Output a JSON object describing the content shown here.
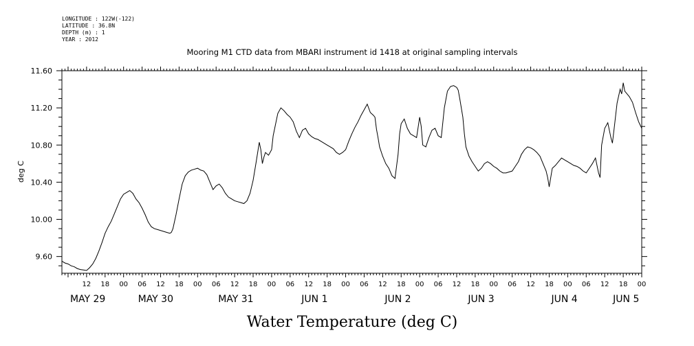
{
  "metadata": {
    "lines": [
      "LONGITUDE : 122W(-122)",
      "LATITUDE : 36.8N",
      "DEPTH (m) : 1",
      "YEAR : 2012"
    ]
  },
  "chart_data": {
    "type": "line",
    "title": "Mooring M1 CTD data from MBARI instrument id 1418 at original sampling intervals",
    "xlabel": "Water Temperature (deg C)",
    "ylabel": "deg C",
    "ylim": [
      9.42,
      11.6
    ],
    "y_ticks": [
      "9.60",
      "10.00",
      "10.40",
      "10.80",
      "11.20",
      "11.60"
    ],
    "x_range_hours": [
      0,
      188
    ],
    "x_hour_ticks": [
      {
        "h": 8,
        "label": "12"
      },
      {
        "h": 14,
        "label": "18"
      },
      {
        "h": 20,
        "label": "00"
      },
      {
        "h": 26,
        "label": "06"
      },
      {
        "h": 32,
        "label": "12"
      },
      {
        "h": 38,
        "label": "18"
      },
      {
        "h": 44,
        "label": "00"
      },
      {
        "h": 50,
        "label": "06"
      },
      {
        "h": 56,
        "label": "12"
      },
      {
        "h": 62,
        "label": "18"
      },
      {
        "h": 68,
        "label": "00"
      },
      {
        "h": 74,
        "label": "06"
      },
      {
        "h": 80,
        "label": "12"
      },
      {
        "h": 86,
        "label": "18"
      },
      {
        "h": 92,
        "label": "00"
      },
      {
        "h": 98,
        "label": "06"
      },
      {
        "h": 104,
        "label": "12"
      },
      {
        "h": 110,
        "label": "18"
      },
      {
        "h": 116,
        "label": "00"
      },
      {
        "h": 122,
        "label": "06"
      },
      {
        "h": 128,
        "label": "12"
      },
      {
        "h": 134,
        "label": "18"
      },
      {
        "h": 140,
        "label": "00"
      },
      {
        "h": 146,
        "label": "06"
      },
      {
        "h": 152,
        "label": "12"
      },
      {
        "h": 158,
        "label": "18"
      },
      {
        "h": 164,
        "label": "00"
      },
      {
        "h": 170,
        "label": "06"
      },
      {
        "h": 176,
        "label": "12"
      },
      {
        "h": 182,
        "label": "18"
      },
      {
        "h": 188,
        "label": "00"
      }
    ],
    "x_day_labels": [
      {
        "h": 2,
        "label": "MAY 29"
      },
      {
        "h": 24,
        "label": "MAY 30"
      },
      {
        "h": 50,
        "label": "MAY 31"
      },
      {
        "h": 77,
        "label": "JUN  1"
      },
      {
        "h": 104,
        "label": "JUN  2"
      },
      {
        "h": 131,
        "label": "JUN  3"
      },
      {
        "h": 158,
        "label": "JUN  4"
      },
      {
        "h": 178,
        "label": "JUN  5"
      }
    ],
    "series": [
      {
        "color": "#000000",
        "points": [
          [
            0,
            9.55
          ],
          [
            1,
            9.53
          ],
          [
            2,
            9.52
          ],
          [
            3,
            9.5
          ],
          [
            4,
            9.49
          ],
          [
            5,
            9.47
          ],
          [
            6,
            9.46
          ],
          [
            7,
            9.455
          ],
          [
            8,
            9.45
          ],
          [
            9,
            9.48
          ],
          [
            10,
            9.52
          ],
          [
            11,
            9.58
          ],
          [
            12,
            9.66
          ],
          [
            13,
            9.75
          ],
          [
            14,
            9.85
          ],
          [
            15,
            9.92
          ],
          [
            16,
            9.98
          ],
          [
            17,
            10.06
          ],
          [
            18,
            10.14
          ],
          [
            19,
            10.22
          ],
          [
            20,
            10.27
          ],
          [
            21,
            10.29
          ],
          [
            22,
            10.31
          ],
          [
            23,
            10.28
          ],
          [
            24,
            10.22
          ],
          [
            25,
            10.18
          ],
          [
            26,
            10.12
          ],
          [
            27,
            10.05
          ],
          [
            28,
            9.97
          ],
          [
            29,
            9.92
          ],
          [
            30,
            9.9
          ],
          [
            31,
            9.89
          ],
          [
            32,
            9.88
          ],
          [
            33,
            9.87
          ],
          [
            34,
            9.86
          ],
          [
            35,
            9.85
          ],
          [
            35.5,
            9.86
          ],
          [
            36,
            9.9
          ],
          [
            37,
            10.05
          ],
          [
            38,
            10.22
          ],
          [
            39,
            10.38
          ],
          [
            40,
            10.47
          ],
          [
            41,
            10.51
          ],
          [
            42,
            10.53
          ],
          [
            43,
            10.54
          ],
          [
            44,
            10.55
          ],
          [
            45,
            10.53
          ],
          [
            46,
            10.52
          ],
          [
            47,
            10.48
          ],
          [
            48,
            10.4
          ],
          [
            49,
            10.32
          ],
          [
            50,
            10.36
          ],
          [
            51,
            10.38
          ],
          [
            52,
            10.34
          ],
          [
            53,
            10.28
          ],
          [
            54,
            10.24
          ],
          [
            55,
            10.22
          ],
          [
            56,
            10.2
          ],
          [
            57,
            10.19
          ],
          [
            58,
            10.18
          ],
          [
            59,
            10.17
          ],
          [
            60,
            10.2
          ],
          [
            61,
            10.28
          ],
          [
            62,
            10.42
          ],
          [
            63,
            10.62
          ],
          [
            64,
            10.83
          ],
          [
            64.5,
            10.75
          ],
          [
            65,
            10.6
          ],
          [
            65.5,
            10.67
          ],
          [
            66,
            10.72
          ],
          [
            67,
            10.69
          ],
          [
            68,
            10.75
          ],
          [
            68.5,
            10.9
          ],
          [
            69,
            10.98
          ],
          [
            70,
            11.14
          ],
          [
            71,
            11.2
          ],
          [
            72,
            11.17
          ],
          [
            73,
            11.13
          ],
          [
            74,
            11.1
          ],
          [
            75,
            11.05
          ],
          [
            76,
            10.95
          ],
          [
            77,
            10.88
          ],
          [
            78,
            10.96
          ],
          [
            79,
            10.98
          ],
          [
            80,
            10.92
          ],
          [
            81,
            10.89
          ],
          [
            82,
            10.87
          ],
          [
            83,
            10.86
          ],
          [
            84,
            10.84
          ],
          [
            85,
            10.82
          ],
          [
            86,
            10.8
          ],
          [
            87,
            10.78
          ],
          [
            88,
            10.76
          ],
          [
            89,
            10.72
          ],
          [
            90,
            10.7
          ],
          [
            91,
            10.72
          ],
          [
            92,
            10.75
          ],
          [
            93,
            10.84
          ],
          [
            94,
            10.92
          ],
          [
            95,
            10.99
          ],
          [
            96,
            11.05
          ],
          [
            97,
            11.12
          ],
          [
            98,
            11.18
          ],
          [
            99,
            11.24
          ],
          [
            100,
            11.15
          ],
          [
            101,
            11.12
          ],
          [
            101.5,
            11.1
          ],
          [
            102,
            10.97
          ],
          [
            102.5,
            10.88
          ],
          [
            103,
            10.78
          ],
          [
            104,
            10.68
          ],
          [
            105,
            10.6
          ],
          [
            106,
            10.55
          ],
          [
            107,
            10.47
          ],
          [
            108,
            10.44
          ],
          [
            109,
            10.7
          ],
          [
            109.5,
            10.92
          ],
          [
            110,
            11.03
          ],
          [
            111,
            11.08
          ],
          [
            112,
            10.98
          ],
          [
            113,
            10.92
          ],
          [
            114,
            10.9
          ],
          [
            115,
            10.88
          ],
          [
            116,
            11.1
          ],
          [
            116.5,
            11.0
          ],
          [
            117,
            10.8
          ],
          [
            118,
            10.78
          ],
          [
            119,
            10.88
          ],
          [
            120,
            10.96
          ],
          [
            121,
            10.98
          ],
          [
            122,
            10.9
          ],
          [
            123,
            10.88
          ],
          [
            124,
            11.2
          ],
          [
            125,
            11.38
          ],
          [
            126,
            11.43
          ],
          [
            127,
            11.44
          ],
          [
            128,
            11.42
          ],
          [
            128.5,
            11.39
          ],
          [
            129,
            11.3
          ],
          [
            130,
            11.1
          ],
          [
            130.5,
            10.92
          ],
          [
            131,
            10.78
          ],
          [
            132,
            10.68
          ],
          [
            133,
            10.62
          ],
          [
            134,
            10.57
          ],
          [
            135,
            10.52
          ],
          [
            136,
            10.55
          ],
          [
            137,
            10.6
          ],
          [
            138,
            10.62
          ],
          [
            139,
            10.6
          ],
          [
            140,
            10.57
          ],
          [
            141,
            10.55
          ],
          [
            142,
            10.52
          ],
          [
            143,
            10.5
          ],
          [
            144,
            10.5
          ],
          [
            145,
            10.51
          ],
          [
            146,
            10.52
          ],
          [
            147,
            10.57
          ],
          [
            148,
            10.62
          ],
          [
            149,
            10.7
          ],
          [
            150,
            10.75
          ],
          [
            151,
            10.78
          ],
          [
            152,
            10.77
          ],
          [
            153,
            10.75
          ],
          [
            154,
            10.72
          ],
          [
            155,
            10.68
          ],
          [
            156,
            10.6
          ],
          [
            157,
            10.52
          ],
          [
            157.5,
            10.45
          ],
          [
            158,
            10.35
          ],
          [
            159,
            10.55
          ],
          [
            160,
            10.58
          ],
          [
            161,
            10.62
          ],
          [
            162,
            10.66
          ],
          [
            163,
            10.64
          ],
          [
            164,
            10.62
          ],
          [
            165,
            10.6
          ],
          [
            166,
            10.58
          ],
          [
            167,
            10.57
          ],
          [
            168,
            10.55
          ],
          [
            169,
            10.52
          ],
          [
            170,
            10.5
          ],
          [
            171,
            10.55
          ],
          [
            172,
            10.6
          ],
          [
            173,
            10.66
          ],
          [
            174,
            10.5
          ],
          [
            174.5,
            10.45
          ],
          [
            175,
            10.8
          ],
          [
            176,
            10.98
          ],
          [
            177,
            11.04
          ],
          [
            178,
            10.88
          ],
          [
            178.5,
            10.82
          ],
          [
            179,
            10.96
          ],
          [
            180,
            11.25
          ],
          [
            181,
            11.4
          ],
          [
            181.5,
            11.35
          ],
          [
            182,
            11.47
          ],
          [
            182.5,
            11.38
          ],
          [
            183,
            11.36
          ],
          [
            184,
            11.32
          ],
          [
            185,
            11.26
          ],
          [
            186,
            11.15
          ],
          [
            187,
            11.05
          ],
          [
            188,
            10.98
          ]
        ]
      }
    ]
  }
}
